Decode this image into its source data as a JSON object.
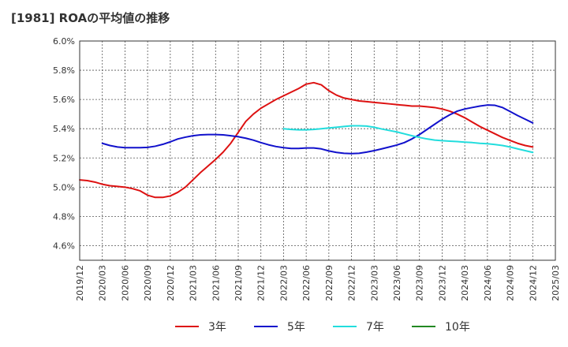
{
  "chart_data": {
    "type": "line",
    "title": "[1981]  ROAの平均値の推移",
    "xlabel": "",
    "ylabel": "",
    "ylim": [
      4.5,
      6.0
    ],
    "y_ticks": [
      "6.0%",
      "5.8%",
      "5.6%",
      "5.4%",
      "5.2%",
      "5.0%",
      "4.8%",
      "4.6%"
    ],
    "y_tick_values": [
      6.0,
      5.8,
      5.6,
      5.4,
      5.2,
      5.0,
      4.8,
      4.6
    ],
    "x_ticks": [
      "2019/12",
      "2020/03",
      "2020/06",
      "2020/09",
      "2020/12",
      "2021/03",
      "2021/06",
      "2021/09",
      "2021/12",
      "2022/03",
      "2022/06",
      "2022/09",
      "2022/12",
      "2023/03",
      "2023/06",
      "2023/09",
      "2023/12",
      "2024/03",
      "2024/06",
      "2024/09",
      "2024/12",
      "2025/03"
    ],
    "grid": true,
    "legend_position": "bottom",
    "series": [
      {
        "name": "3年",
        "color": "#dd1111",
        "x": [
          "2019/12",
          "2020/01",
          "2020/02",
          "2020/03",
          "2020/04",
          "2020/05",
          "2020/06",
          "2020/07",
          "2020/08",
          "2020/09",
          "2020/10",
          "2020/11",
          "2020/12",
          "2021/01",
          "2021/02",
          "2021/03",
          "2021/04",
          "2021/05",
          "2021/06",
          "2021/07",
          "2021/08",
          "2021/09",
          "2021/10",
          "2021/11",
          "2021/12",
          "2022/01",
          "2022/02",
          "2022/03",
          "2022/04",
          "2022/05",
          "2022/06",
          "2022/07",
          "2022/08",
          "2022/09",
          "2022/10",
          "2022/11",
          "2022/12",
          "2023/01",
          "2023/02",
          "2023/03",
          "2023/04",
          "2023/05",
          "2023/06",
          "2023/07",
          "2023/08",
          "2023/09",
          "2023/10",
          "2023/11",
          "2023/12",
          "2024/01",
          "2024/02",
          "2024/03",
          "2024/04",
          "2024/05",
          "2024/06",
          "2024/07",
          "2024/08",
          "2024/09",
          "2024/10",
          "2024/11",
          "2024/12"
        ],
        "values": [
          5.05,
          5.045,
          5.035,
          5.02,
          5.01,
          5.005,
          5.0,
          4.99,
          4.975,
          4.945,
          4.93,
          4.93,
          4.94,
          4.965,
          5.0,
          5.05,
          5.1,
          5.145,
          5.19,
          5.24,
          5.3,
          5.375,
          5.45,
          5.5,
          5.54,
          5.57,
          5.6,
          5.625,
          5.65,
          5.675,
          5.705,
          5.715,
          5.7,
          5.66,
          5.63,
          5.61,
          5.6,
          5.59,
          5.585,
          5.58,
          5.575,
          5.57,
          5.565,
          5.56,
          5.555,
          5.555,
          5.55,
          5.545,
          5.535,
          5.52,
          5.5,
          5.475,
          5.445,
          5.415,
          5.39,
          5.365,
          5.34,
          5.32,
          5.3,
          5.285,
          5.275
        ]
      },
      {
        "name": "5年",
        "color": "#1111cc",
        "x": [
          "2020/03",
          "2020/04",
          "2020/05",
          "2020/06",
          "2020/07",
          "2020/08",
          "2020/09",
          "2020/10",
          "2020/11",
          "2020/12",
          "2021/01",
          "2021/02",
          "2021/03",
          "2021/04",
          "2021/05",
          "2021/06",
          "2021/07",
          "2021/08",
          "2021/09",
          "2021/10",
          "2021/11",
          "2021/12",
          "2022/01",
          "2022/02",
          "2022/03",
          "2022/04",
          "2022/05",
          "2022/06",
          "2022/07",
          "2022/08",
          "2022/09",
          "2022/10",
          "2022/11",
          "2022/12",
          "2023/01",
          "2023/02",
          "2023/03",
          "2023/04",
          "2023/05",
          "2023/06",
          "2023/07",
          "2023/08",
          "2023/09",
          "2023/10",
          "2023/11",
          "2023/12",
          "2024/01",
          "2024/02",
          "2024/03",
          "2024/04",
          "2024/05",
          "2024/06",
          "2024/07",
          "2024/08",
          "2024/09",
          "2024/10",
          "2024/11",
          "2024/12"
        ],
        "values": [
          5.3,
          5.285,
          5.275,
          5.27,
          5.27,
          5.27,
          5.272,
          5.28,
          5.293,
          5.31,
          5.33,
          5.342,
          5.352,
          5.358,
          5.36,
          5.36,
          5.358,
          5.352,
          5.345,
          5.335,
          5.322,
          5.305,
          5.29,
          5.278,
          5.27,
          5.265,
          5.265,
          5.268,
          5.268,
          5.262,
          5.248,
          5.238,
          5.232,
          5.23,
          5.232,
          5.24,
          5.25,
          5.262,
          5.275,
          5.288,
          5.305,
          5.33,
          5.36,
          5.395,
          5.43,
          5.465,
          5.495,
          5.52,
          5.535,
          5.545,
          5.555,
          5.562,
          5.56,
          5.545,
          5.518,
          5.49,
          5.465,
          5.44
        ]
      },
      {
        "name": "7年",
        "color": "#22dddd",
        "x": [
          "2022/03",
          "2022/04",
          "2022/05",
          "2022/06",
          "2022/07",
          "2022/08",
          "2022/09",
          "2022/10",
          "2022/11",
          "2022/12",
          "2023/01",
          "2023/02",
          "2023/03",
          "2023/04",
          "2023/05",
          "2023/06",
          "2023/07",
          "2023/08",
          "2023/09",
          "2023/10",
          "2023/11",
          "2023/12",
          "2024/01",
          "2024/02",
          "2024/03",
          "2024/04",
          "2024/05",
          "2024/06",
          "2024/07",
          "2024/08",
          "2024/09",
          "2024/10",
          "2024/11",
          "2024/12"
        ],
        "values": [
          5.4,
          5.395,
          5.392,
          5.392,
          5.395,
          5.4,
          5.405,
          5.41,
          5.415,
          5.42,
          5.42,
          5.418,
          5.41,
          5.398,
          5.388,
          5.378,
          5.365,
          5.352,
          5.34,
          5.33,
          5.322,
          5.318,
          5.315,
          5.312,
          5.308,
          5.305,
          5.3,
          5.297,
          5.292,
          5.285,
          5.275,
          5.262,
          5.25,
          5.238
        ]
      },
      {
        "name": "10年",
        "color": "#228822",
        "x": [],
        "values": []
      }
    ]
  }
}
